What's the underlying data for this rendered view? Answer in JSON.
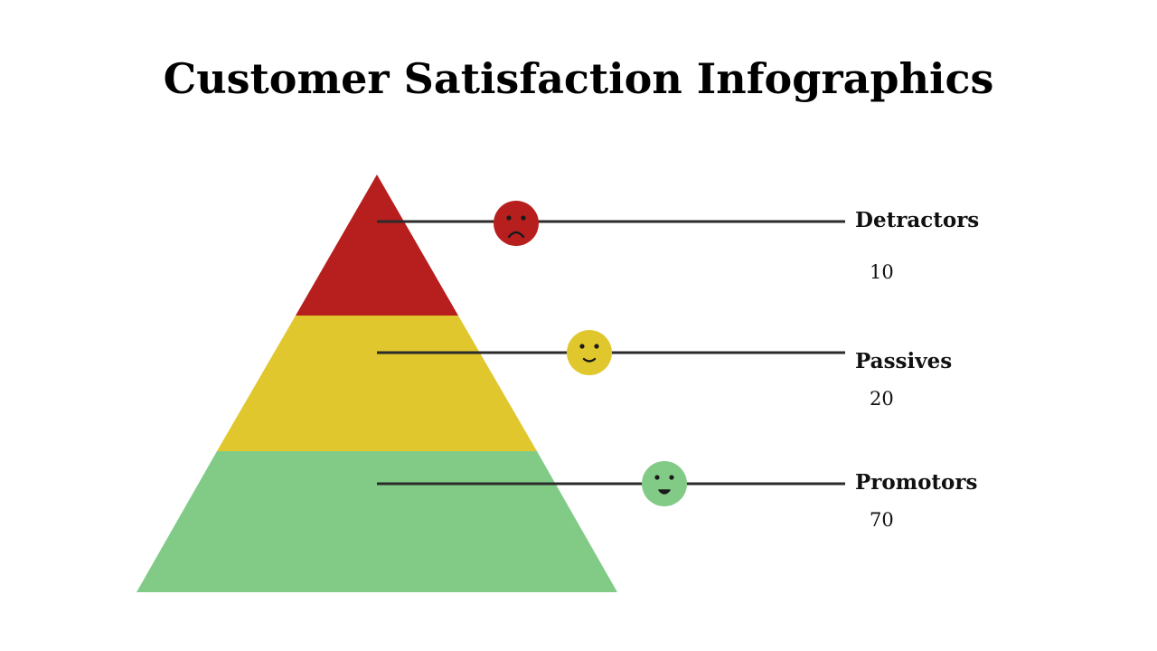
{
  "title": "Customer Satisfaction Infographics",
  "levels": [
    {
      "label": "Detractors",
      "value": "10",
      "color": "#b71f1e",
      "face": "sad-face-icon"
    },
    {
      "label": "Passives",
      "value": "20",
      "color": "#e1c72e",
      "face": "neutral-face-icon"
    },
    {
      "label": "Promotors",
      "value": "70",
      "color": "#82cb87",
      "face": "happy-face-icon"
    }
  ]
}
